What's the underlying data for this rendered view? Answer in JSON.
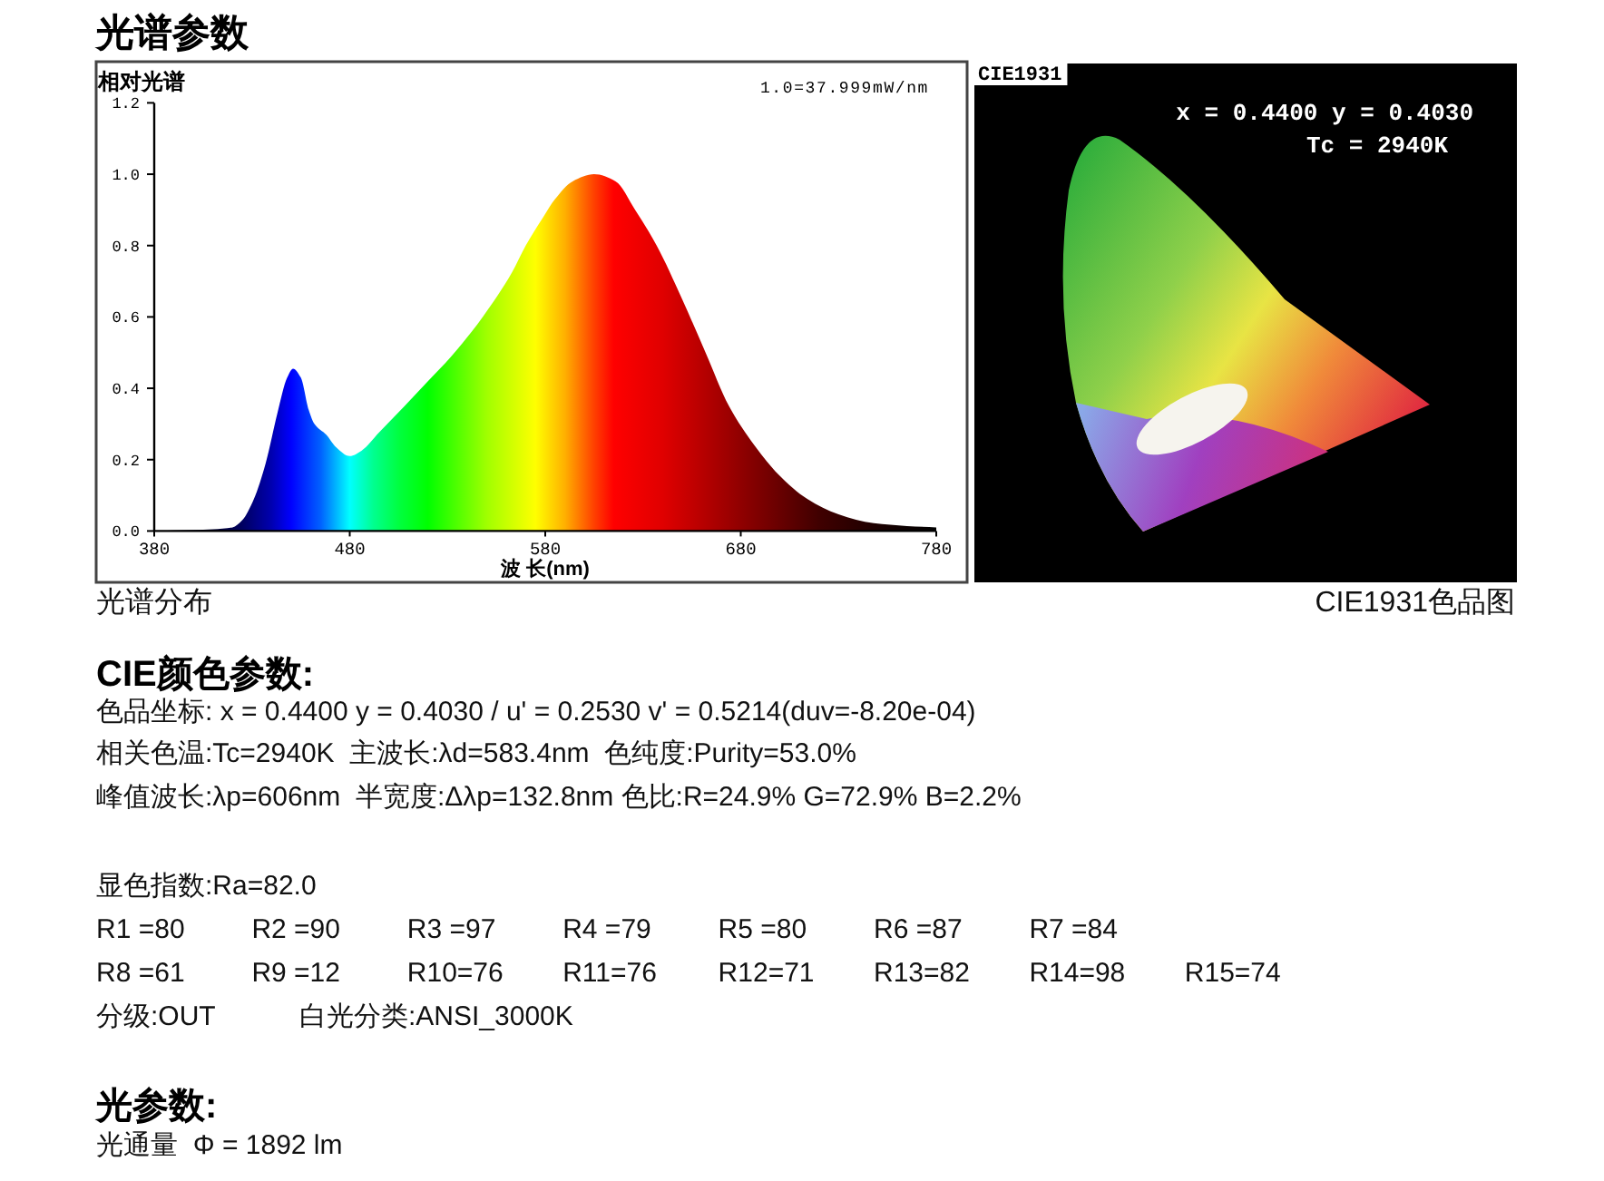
{
  "chart_data": [
    {
      "type": "area",
      "title": "光谱参数",
      "ylabel": "相对光谱",
      "xlabel": "波 长(nm)",
      "annotations": [
        "1.0=37.999mW/nm",
        "光谱分布"
      ],
      "x": [
        380,
        400,
        410,
        420,
        425,
        431,
        437,
        443,
        448,
        451,
        455,
        459,
        462,
        468,
        473,
        480,
        486,
        495,
        508,
        520,
        532,
        548,
        563,
        570,
        579,
        585,
        594,
        605,
        616,
        626,
        637,
        650,
        662,
        674,
        687,
        699,
        714,
        730,
        748,
        765,
        780
      ],
      "values": [
        0,
        0.003,
        0.005,
        0.01,
        0.03,
        0.09,
        0.19,
        0.33,
        0.43,
        0.455,
        0.43,
        0.34,
        0.3,
        0.27,
        0.235,
        0.21,
        0.225,
        0.276,
        0.35,
        0.42,
        0.49,
        0.6,
        0.725,
        0.8,
        0.88,
        0.93,
        0.98,
        1.0,
        0.98,
        0.9,
        0.8,
        0.65,
        0.5,
        0.35,
        0.24,
        0.16,
        0.09,
        0.047,
        0.022,
        0.014,
        0.01
      ],
      "xlim": [
        380,
        780
      ],
      "xticks": [
        380,
        480,
        580,
        680,
        780
      ],
      "ylim": [
        0,
        1.2
      ],
      "yticks": [
        {
          "value": 0,
          "label": "0.0"
        },
        0.2,
        0.4,
        0.6,
        0.8,
        {
          "value": 1,
          "label": "1.0"
        },
        1.2
      ]
    },
    {
      "type": "other",
      "title": "CIE1931",
      "annotations": [
        "x = 0.4400 y = 0.4030",
        "Tc = 2940K",
        "CIE1931色品图"
      ]
    },
    {
      "type": "other",
      "title": "CIE颜色参数:",
      "annotations": [
        "色品坐标: x = 0.4400 y = 0.4030 / u' = 0.2530 v' = 0.5214(duv=-8.20e-04)",
        "相关色温:Tc=2940K  主波长:λd=583.4nm  色纯度:Purity=53.0%",
        "峰值波长:λp=606nm  半宽度:Δλp=132.8nm 色比:R=24.9% G=72.9% B=2.2%",
        "显色指数:Ra=82.0",
        "R1 =80",
        "R2 =90",
        "R3 =97",
        "R4 =79",
        "R5 =80",
        "R6 =87",
        "R7 =84",
        "R8 =61",
        "R9 =12",
        "R10=76",
        "R11=76",
        "R12=71",
        "R13=82",
        "R14=98",
        "R15=74",
        "分级:OUT",
        "白光分类:ANSI_3000K"
      ]
    },
    {
      "type": "other",
      "title": "光参数:",
      "annotations": [
        "光通量  Φ = 1892 lm"
      ]
    }
  ]
}
